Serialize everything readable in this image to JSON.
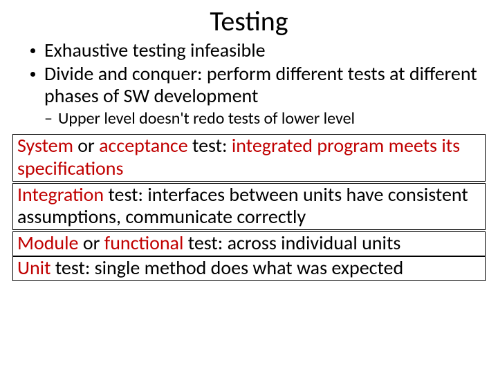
{
  "title": "Testing",
  "bullets": {
    "b1": "Exhaustive testing infeasible",
    "b2": "Divide and conquer: perform different tests at different phases of SW development",
    "b2a": "Upper level doesn't redo tests of lower level",
    "dash": "–"
  },
  "boxes": {
    "box1": {
      "t1": "System",
      "t2": " or ",
      "t3": "acceptance",
      "t4": " test: ",
      "t5": "integrated program meets its specifications"
    },
    "box2": {
      "t1": "Integration",
      "t2": " test: ",
      "t3": "interfaces between units have consistent assumptions, communicate correctly"
    },
    "box3": {
      "t1": "Module",
      "t2": " or ",
      "t3": "functional",
      "t4": " test: ",
      "t5": "across individual units"
    },
    "box4": {
      "t1": "Unit",
      "t2": " test: ",
      "t3": "single method does what was expected"
    }
  },
  "colors": {
    "highlight": "#c00000",
    "text": "#000000",
    "background": "#ffffff",
    "border": "#000000"
  },
  "fonts": {
    "title_size_pt": 40,
    "bullet_l1_size_pt": 28,
    "bullet_l2_size_pt": 24,
    "box_size_pt": 28
  }
}
